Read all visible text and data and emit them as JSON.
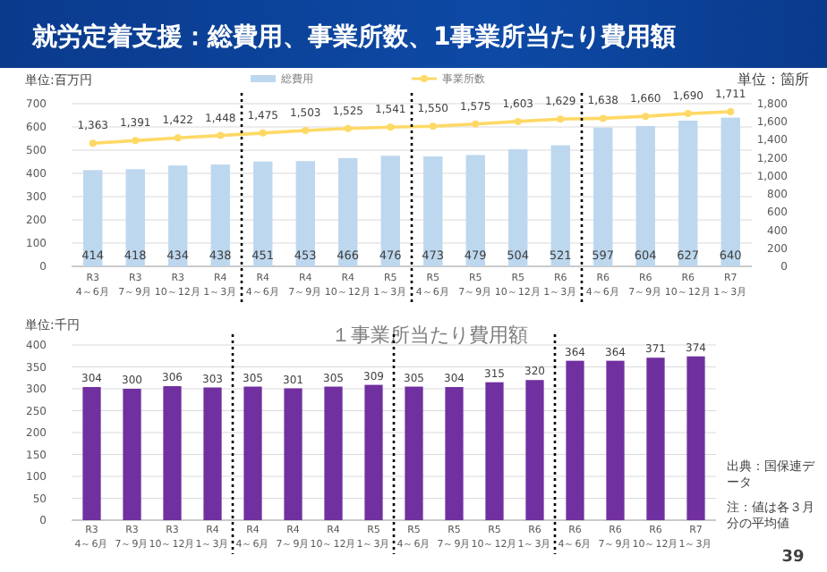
{
  "chart_data": [
    {
      "type": "bar",
      "title": "就労定着支援：総費用、事業所数、1事業所当たり費用額",
      "ylabel": "単位:百万円",
      "y2label": "単位：箇所",
      "categories": [
        "R3\n4～6月",
        "R3\n7～9月",
        "R3\n10～12月",
        "R4\n1～3月",
        "R4\n4～6月",
        "R4\n7～9月",
        "R4\n10～12月",
        "R5\n1～3月",
        "R5\n4～6月",
        "R5\n7～9月",
        "R5\n10～12月",
        "R6\n1～3月",
        "R6\n4～6月",
        "R6\n7～9月",
        "R6\n10～12月",
        "R7\n1～3月"
      ],
      "series": [
        {
          "name": "総費用",
          "color": "#bdd7ee",
          "values": [
            414,
            418,
            434,
            438,
            451,
            453,
            466,
            476,
            473,
            479,
            504,
            521,
            597,
            604,
            627,
            640
          ]
        },
        {
          "name": "事業所数",
          "type": "line",
          "axis": "y2",
          "color": "#ffd966",
          "values": [
            1363,
            1391,
            1422,
            1448,
            1475,
            1503,
            1525,
            1541,
            1550,
            1575,
            1603,
            1629,
            1638,
            1660,
            1690,
            1711
          ],
          "value_labels": [
            "1,363",
            "1,391",
            "1,422",
            "1,448",
            "1,475",
            "1,503",
            "1,525",
            "1,541",
            "1,550",
            "1,575",
            "1,603",
            "1,629",
            "1,638",
            "1,660",
            "1,690",
            "1,711"
          ]
        }
      ],
      "ylim": [
        0,
        700
      ],
      "yticks": [
        0,
        100,
        200,
        300,
        400,
        500,
        600,
        700
      ],
      "y2lim": [
        0,
        1800
      ],
      "y2ticks": [
        0,
        {
          "value": 200,
          "label": "200"
        },
        {
          "value": 400,
          "label": "400"
        },
        {
          "value": 600,
          "label": "600"
        },
        {
          "value": 800,
          "label": "800"
        },
        {
          "value": 1000,
          "label": "1,000"
        },
        {
          "value": 1200,
          "label": "1,200"
        },
        {
          "value": 1400,
          "label": "1,400"
        },
        {
          "value": 1600,
          "label": "1,600"
        },
        {
          "value": 1800,
          "label": "1,800"
        }
      ],
      "grid": "y",
      "legend": "top",
      "marker": "circle",
      "data_labels": true
    },
    {
      "type": "bar",
      "title": "１事業所当たり費用額",
      "ylabel": "単位:千円",
      "categories": [
        "R3\n4～6月",
        "R3\n7～9月",
        "R3\n10～12月",
        "R4\n1～3月",
        "R4\n4～6月",
        "R4\n7～9月",
        "R4\n10～12月",
        "R5\n1～3月",
        "R5\n4～6月",
        "R5\n7～9月",
        "R5\n10～12月",
        "R6\n1～3月",
        "R6\n4～6月",
        "R6\n7～9月",
        "R6\n10～12月",
        "R7\n1～3月"
      ],
      "values": [
        304,
        300,
        306,
        303,
        305,
        301,
        305,
        309,
        305,
        304,
        315,
        320,
        364,
        364,
        371,
        374
      ],
      "color": "#7030a0",
      "ylim": [
        0,
        400
      ],
      "yticks": [
        0,
        50,
        100,
        150,
        200,
        250,
        300,
        350,
        400
      ],
      "grid": "y",
      "data_labels": true,
      "annotations": [
        "出典：国保連データ",
        "注：値は各３月分の平均値",
        "39"
      ]
    }
  ]
}
